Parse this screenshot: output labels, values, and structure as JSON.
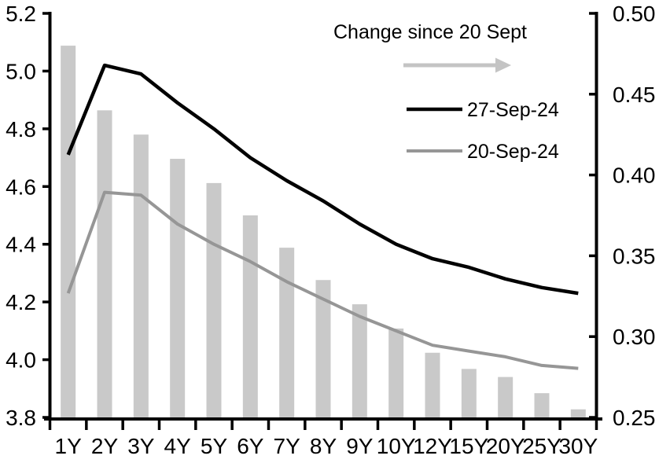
{
  "chart_data": {
    "type": "bar",
    "subtype": "bar-line-combo",
    "title": "",
    "background": "#ffffff",
    "grid": false,
    "categories": [
      "1Y",
      "2Y",
      "3Y",
      "4Y",
      "5Y",
      "6Y",
      "7Y",
      "8Y",
      "9Y",
      "10Y",
      "12Y",
      "15Y",
      "20Y",
      "25Y",
      "30Y"
    ],
    "left_axis": {
      "range": [
        3.8,
        5.2
      ],
      "tick_labels": [
        "5.2",
        "5.0",
        "4.8",
        "4.6",
        "4.4",
        "4.2",
        "4.0",
        "3.8"
      ],
      "side": "left"
    },
    "right_axis": {
      "range": [
        0.25,
        0.5
      ],
      "tick_labels": [
        "0.50",
        "0.45",
        "0.40",
        "0.35",
        "0.30",
        "0.25"
      ],
      "side": "right"
    },
    "series": [
      {
        "name": "Change since 20 Sept",
        "type": "bar",
        "axis": "right",
        "color": "#c9c9c9",
        "values": [
          0.48,
          0.44,
          0.425,
          0.41,
          0.395,
          0.375,
          0.355,
          0.335,
          0.32,
          0.305,
          0.29,
          0.28,
          0.275,
          0.265,
          0.255
        ]
      },
      {
        "name": "27-Sep-24",
        "type": "line",
        "axis": "left",
        "color": "#000000",
        "values": [
          4.71,
          5.02,
          4.99,
          4.89,
          4.8,
          4.7,
          4.62,
          4.55,
          4.47,
          4.4,
          4.35,
          4.32,
          4.28,
          4.25,
          4.23
        ]
      },
      {
        "name": "20-Sep-24",
        "type": "line",
        "axis": "left",
        "color": "#969696",
        "values": [
          4.23,
          4.58,
          4.57,
          4.47,
          4.4,
          4.34,
          4.27,
          4.21,
          4.15,
          4.1,
          4.05,
          4.03,
          4.01,
          3.98,
          3.97
        ]
      }
    ],
    "legend": {
      "position": "top-right-inside",
      "title": "Change since 20 Sept",
      "arrow": {
        "icon": "right-arrow-icon",
        "color": "#c4c4c4",
        "direction": "right"
      },
      "entries": [
        {
          "label": "27-Sep-24",
          "color": "#000000"
        },
        {
          "label": "20-Sep-24",
          "color": "#969696"
        }
      ]
    }
  }
}
